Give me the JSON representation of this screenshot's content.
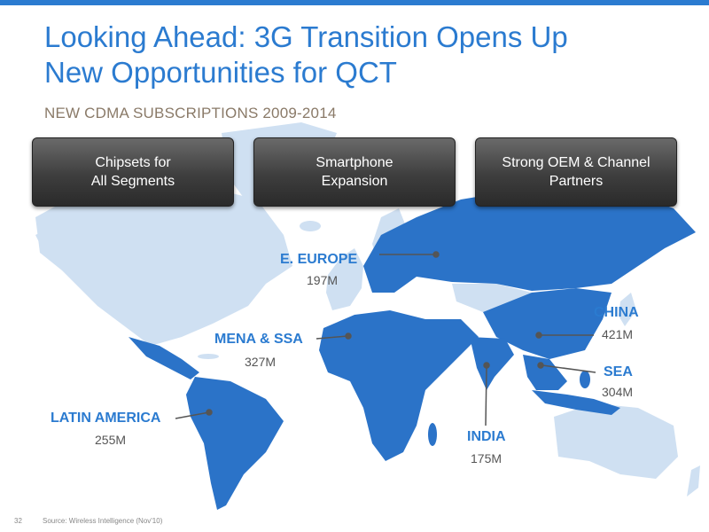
{
  "slide": {
    "title_line1": "Looking Ahead: 3G Transition Opens Up",
    "title_line2": "New Opportunities for QCT",
    "subtitle": "NEW CDMA SUBSCRIPTIONS 2009-2014",
    "page_number": "32",
    "source": "Source: Wireless Intelligence (Nov'10)"
  },
  "buttons": [
    {
      "line1": "Chipsets for",
      "line2": "All Segments"
    },
    {
      "line1": "Smartphone",
      "line2": "Expansion"
    },
    {
      "line1": "Strong OEM & Channel",
      "line2": "Partners"
    }
  ],
  "regions": {
    "eeurope": {
      "name": "E. EUROPE",
      "value": "197M"
    },
    "mena": {
      "name": "MENA & SSA",
      "value": "327M"
    },
    "latam": {
      "name": "LATIN AMERICA",
      "value": "255M"
    },
    "india": {
      "name": "INDIA",
      "value": "175M"
    },
    "china": {
      "name": "CHINA",
      "value": "421M"
    },
    "sea": {
      "name": "SEA",
      "value": "304M"
    }
  },
  "colors": {
    "accent": "#2b7bd0",
    "land_light": "#cfe0f2",
    "land_highlight": "#2b73c8",
    "button": "#3e3e3e"
  }
}
